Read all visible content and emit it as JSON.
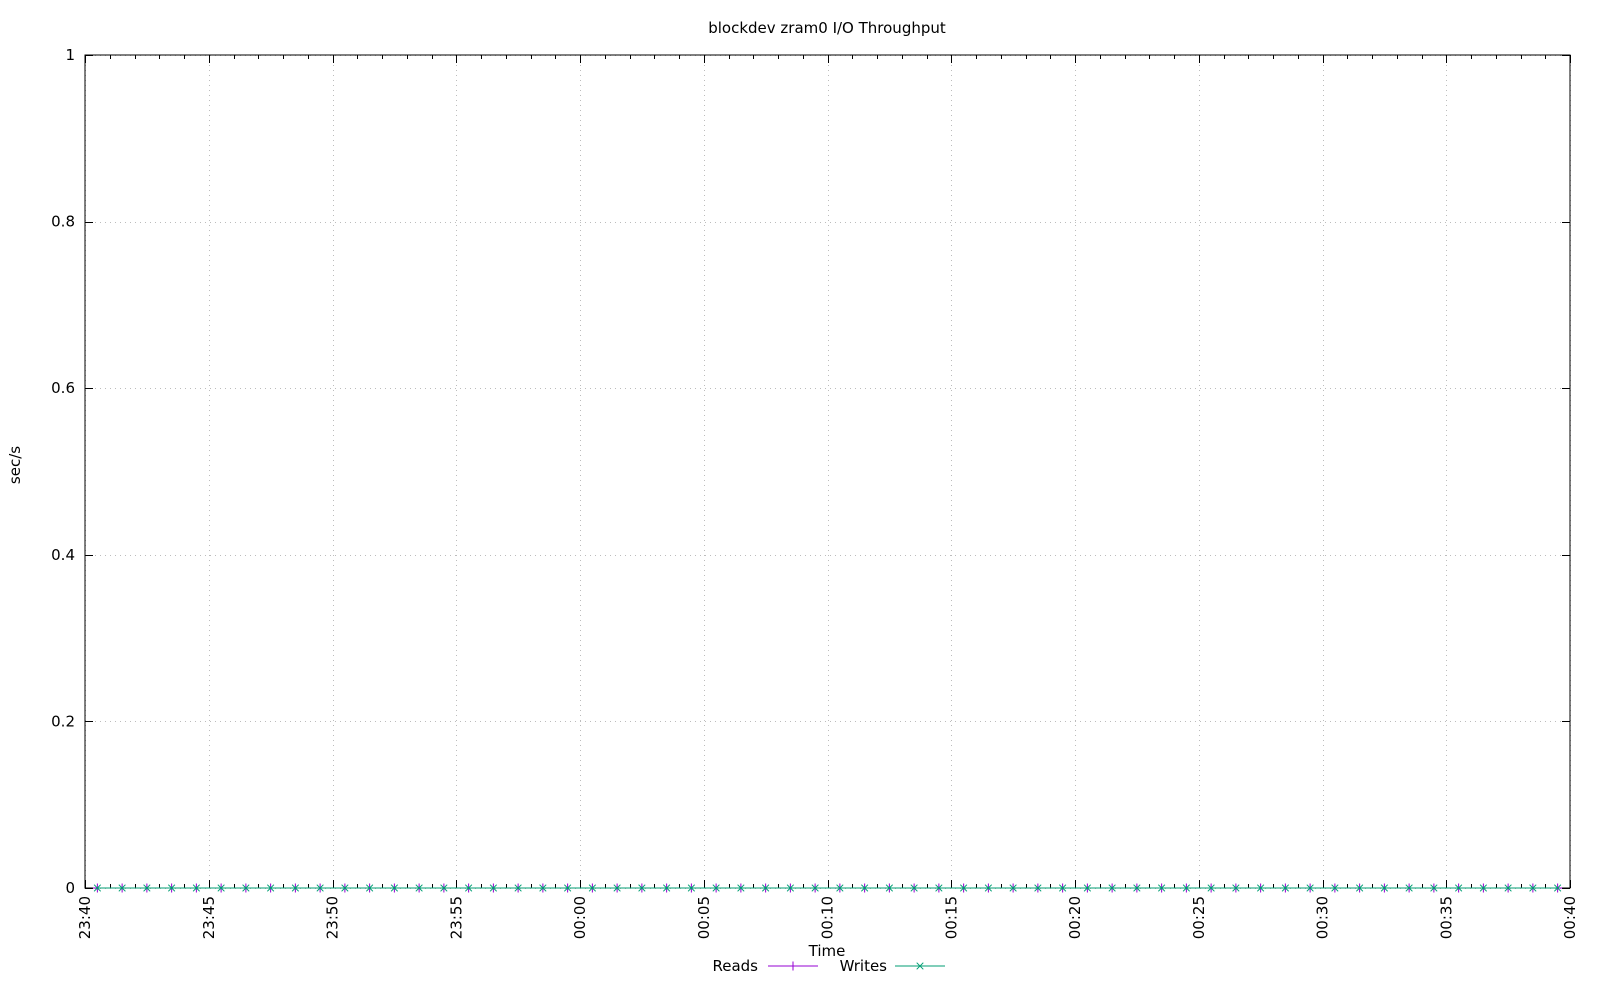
{
  "chart_data": {
    "type": "line",
    "title": "blockdev zram0 I/O Throughput",
    "xlabel": "Time",
    "ylabel": "sec/s",
    "ylim": [
      0,
      1
    ],
    "y_ticks": [
      0,
      0.2,
      0.4,
      0.6,
      0.8,
      1
    ],
    "y_tick_labels": [
      "0",
      "0.2",
      "0.4",
      "0.6",
      "0.8",
      "1"
    ],
    "x_tick_labels": [
      "23:40",
      "23:45",
      "23:50",
      "23:55",
      "00:00",
      "00:05",
      "00:10",
      "00:15",
      "00:20",
      "00:25",
      "00:30",
      "00:35",
      "00:40"
    ],
    "x_major_step_minutes": 5,
    "x_minor_step_minutes": 1,
    "x_range_minutes": 60,
    "points": {
      "start_minute": 0.5,
      "step_minutes": 1,
      "count": 60
    },
    "series": [
      {
        "name": "Reads",
        "color": "#9400d3",
        "marker": "plus",
        "values": [
          0,
          0,
          0,
          0,
          0,
          0,
          0,
          0,
          0,
          0,
          0,
          0,
          0,
          0,
          0,
          0,
          0,
          0,
          0,
          0,
          0,
          0,
          0,
          0,
          0,
          0,
          0,
          0,
          0,
          0,
          0,
          0,
          0,
          0,
          0,
          0,
          0,
          0,
          0,
          0,
          0,
          0,
          0,
          0,
          0,
          0,
          0,
          0,
          0,
          0,
          0,
          0,
          0,
          0,
          0,
          0,
          0,
          0,
          0,
          0
        ]
      },
      {
        "name": "Writes",
        "color": "#009e73",
        "marker": "cross",
        "values": [
          0,
          0,
          0,
          0,
          0,
          0,
          0,
          0,
          0,
          0,
          0,
          0,
          0,
          0,
          0,
          0,
          0,
          0,
          0,
          0,
          0,
          0,
          0,
          0,
          0,
          0,
          0,
          0,
          0,
          0,
          0,
          0,
          0,
          0,
          0,
          0,
          0,
          0,
          0,
          0,
          0,
          0,
          0,
          0,
          0,
          0,
          0,
          0,
          0,
          0,
          0,
          0,
          0,
          0,
          0,
          0,
          0,
          0,
          0,
          0
        ]
      }
    ],
    "grid": {
      "show": true,
      "color": "#bcbcbc",
      "style": "dotted"
    },
    "legend": {
      "position": "bottom-center"
    },
    "axis_color": "#000000"
  }
}
